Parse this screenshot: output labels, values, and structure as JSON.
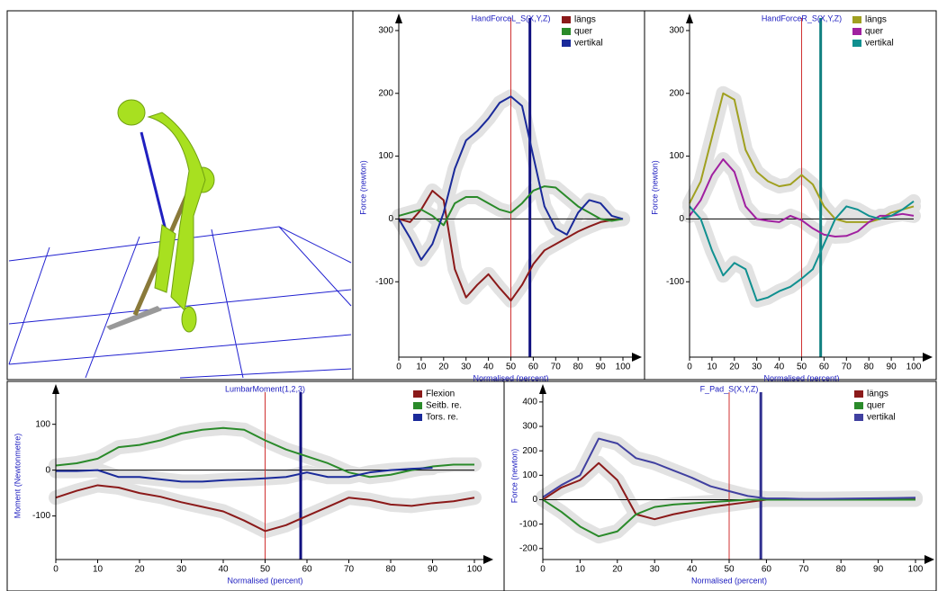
{
  "chart_data": [
    {
      "type": "line",
      "title": "HandForceL_S(X,Y,Z)",
      "xlabel": "Normalised (percent)",
      "ylabel": "Force (newton)",
      "x": [
        0,
        5,
        10,
        15,
        20,
        25,
        30,
        35,
        40,
        45,
        50,
        55,
        60,
        65,
        70,
        75,
        80,
        85,
        90,
        95,
        100
      ],
      "xlim": [
        0,
        100
      ],
      "xticks": [
        0,
        10,
        20,
        30,
        40,
        50,
        60,
        70,
        80,
        90,
        100
      ],
      "ylim": [
        -220,
        320
      ],
      "yticks": [
        -100,
        0,
        100,
        200,
        300
      ],
      "series": [
        {
          "name": "längs",
          "color": "#8b1a1a",
          "values": [
            0,
            -5,
            15,
            45,
            30,
            -80,
            -125,
            -105,
            -88,
            -110,
            -130,
            -105,
            -72,
            -50,
            -40,
            -30,
            -20,
            -12,
            -5,
            -2,
            0
          ]
        },
        {
          "name": "quer",
          "color": "#2a8a2a",
          "values": [
            5,
            10,
            15,
            5,
            -10,
            25,
            35,
            35,
            25,
            15,
            10,
            25,
            45,
            52,
            50,
            35,
            20,
            10,
            0,
            -3,
            0
          ]
        },
        {
          "name": "vertikal",
          "color": "#1a2a9a",
          "values": [
            0,
            -30,
            -65,
            -40,
            10,
            80,
            125,
            140,
            160,
            185,
            195,
            180,
            100,
            20,
            -15,
            -25,
            10,
            30,
            25,
            5,
            0
          ]
        }
      ],
      "markers": [
        {
          "value": 50,
          "color": "#d03030"
        },
        {
          "value": 58.5,
          "color": "#101080"
        }
      ]
    },
    {
      "type": "line",
      "title": "HandForceR_S(X,Y,Z)",
      "xlabel": "Normalised (percent)",
      "ylabel": "Force (newton)",
      "x": [
        0,
        5,
        10,
        15,
        20,
        25,
        30,
        35,
        40,
        45,
        50,
        55,
        60,
        65,
        70,
        75,
        80,
        85,
        90,
        95,
        100
      ],
      "xlim": [
        0,
        100
      ],
      "xticks": [
        0,
        10,
        20,
        30,
        40,
        50,
        60,
        70,
        80,
        90,
        100
      ],
      "ylim": [
        -220,
        320
      ],
      "yticks": [
        -100,
        0,
        100,
        200,
        300
      ],
      "series": [
        {
          "name": "längs",
          "color": "#a0a020",
          "values": [
            25,
            60,
            130,
            200,
            190,
            110,
            75,
            60,
            52,
            55,
            70,
            55,
            20,
            0,
            -5,
            -5,
            -5,
            0,
            10,
            15,
            20
          ]
        },
        {
          "name": "quer",
          "color": "#a020a0",
          "values": [
            5,
            30,
            70,
            95,
            75,
            20,
            0,
            -3,
            -5,
            5,
            -2,
            -15,
            -25,
            -28,
            -27,
            -20,
            -5,
            5,
            5,
            8,
            5
          ]
        },
        {
          "name": "vertikal",
          "color": "#109090",
          "values": [
            20,
            0,
            -50,
            -90,
            -70,
            -80,
            -130,
            -125,
            -115,
            -108,
            -95,
            -80,
            -40,
            0,
            20,
            15,
            5,
            0,
            5,
            15,
            28
          ]
        }
      ],
      "markers": [
        {
          "value": 50,
          "color": "#d03030"
        },
        {
          "value": 58.5,
          "color": "#108080"
        }
      ]
    },
    {
      "type": "line",
      "title": "LumbarMoment(1,2,3)",
      "xlabel": "Normalised (percent)",
      "ylabel": "Moment (Newtonmetre)",
      "x": [
        0,
        5,
        10,
        15,
        20,
        25,
        30,
        35,
        40,
        45,
        50,
        55,
        60,
        65,
        70,
        75,
        80,
        85,
        90,
        95,
        100
      ],
      "xlim": [
        0,
        100
      ],
      "xticks": [
        0,
        10,
        20,
        30,
        40,
        50,
        60,
        70,
        80,
        90,
        100
      ],
      "ylim": [
        -195,
        170
      ],
      "yticks": [
        -100,
        0,
        100
      ],
      "series": [
        {
          "name": "Flexion",
          "color": "#8b1a1a",
          "values": [
            -60,
            -45,
            -33,
            -38,
            -50,
            -58,
            -70,
            -80,
            -90,
            -110,
            -133,
            -120,
            -100,
            -80,
            -60,
            -65,
            -75,
            -78,
            -72,
            -68,
            -60
          ]
        },
        {
          "name": "Seitb. re.",
          "color": "#2a8a2a",
          "values": [
            10,
            15,
            25,
            50,
            55,
            65,
            80,
            88,
            92,
            88,
            65,
            45,
            30,
            15,
            -5,
            -15,
            -10,
            0,
            8,
            12,
            12
          ]
        },
        {
          "name": "Tors. re.",
          "color": "#1a2a9a",
          "values": [
            -2,
            -2,
            0,
            -15,
            -15,
            -20,
            -25,
            -25,
            -22,
            -20,
            -18,
            -15,
            -5,
            -15,
            -15,
            -5,
            0,
            3,
            5,
            null,
            null
          ]
        }
      ],
      "markers": [
        {
          "value": 50,
          "color": "#d03030"
        },
        {
          "value": 58.5,
          "color": "#101080"
        }
      ]
    },
    {
      "type": "line",
      "title": "F_Pad_S(X,Y,Z)",
      "xlabel": "Normalised (percent)",
      "ylabel": "Force (newton)",
      "x": [
        0,
        5,
        10,
        15,
        20,
        25,
        30,
        35,
        40,
        45,
        50,
        55,
        60,
        65,
        70,
        75,
        80,
        85,
        90,
        95,
        100
      ],
      "xlim": [
        0,
        100
      ],
      "xticks": [
        0,
        10,
        20,
        30,
        40,
        50,
        60,
        70,
        80,
        90,
        100
      ],
      "ylim": [
        -245,
        440
      ],
      "yticks": [
        -200,
        -100,
        0,
        100,
        200,
        300,
        400
      ],
      "series": [
        {
          "name": "längs",
          "color": "#8b1a1a",
          "values": [
            0,
            50,
            80,
            150,
            80,
            -60,
            -80,
            -60,
            -45,
            -30,
            -20,
            -10,
            0,
            0,
            0,
            2,
            2,
            3,
            4,
            5,
            5
          ]
        },
        {
          "name": "quer",
          "color": "#2a8a2a",
          "values": [
            0,
            -50,
            -110,
            -150,
            -130,
            -60,
            -30,
            -20,
            -15,
            -10,
            -5,
            0,
            0,
            0,
            0,
            0,
            0,
            0,
            0,
            0,
            0
          ]
        },
        {
          "name": "vertikal",
          "color": "#4040a0",
          "values": [
            10,
            60,
            100,
            250,
            230,
            170,
            150,
            120,
            90,
            55,
            35,
            15,
            5,
            5,
            3,
            3,
            4,
            5,
            6,
            7,
            8
          ]
        }
      ],
      "markers": [
        {
          "value": 50,
          "color": "#d03030"
        },
        {
          "value": 58.5,
          "color": "#303090"
        }
      ]
    }
  ]
}
